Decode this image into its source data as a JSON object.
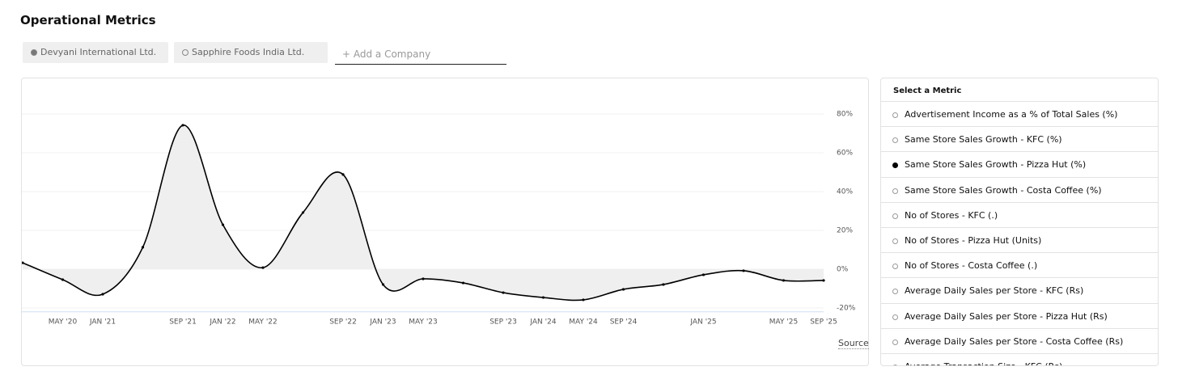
{
  "header": {
    "title": "Operational Metrics"
  },
  "companies": [
    {
      "name": "Devyani International Ltd.",
      "active": true
    },
    {
      "name": "Sapphire Foods India Ltd.",
      "active": false
    }
  ],
  "add_company": "+ Add a Company",
  "source": "Source",
  "chart_data": {
    "type": "line",
    "categories": [
      null,
      "MAY '20",
      "JAN '21",
      null,
      "SEP '21",
      "JAN '22",
      "MAY '22",
      null,
      "SEP '22",
      "JAN '23",
      "MAY '23",
      null,
      "SEP '23",
      "JAN '24",
      "MAY '24",
      "SEP '24",
      null,
      "JAN '25",
      null,
      "MAY '25",
      "SEP '25"
    ],
    "series": [
      {
        "color": "#000000",
        "values": [
          3.3,
          -5.4,
          -12.9,
          11.3,
          74.2,
          22.9,
          0.8,
          29.2,
          48.8,
          -7.9,
          -5,
          -7.1,
          -12.1,
          -14.6,
          -15.8,
          -10.4,
          -7.9,
          -2.9,
          -0.8,
          -5.8,
          -5.8
        ]
      }
    ],
    "ylim": [
      -22,
      96
    ],
    "yticks": [
      {
        "value": -20,
        "label": "-20%"
      },
      {
        "value": 0,
        "label": "0%"
      },
      {
        "value": 20,
        "label": "20%"
      },
      {
        "value": 40,
        "label": "40%"
      },
      {
        "value": 60,
        "label": "60%"
      },
      {
        "value": 80,
        "label": "80%"
      }
    ],
    "grid": true,
    "fill": "#efefef"
  },
  "metrics": {
    "title": "Select a Metric",
    "selected": 2,
    "items": [
      "Advertisement Income as a % of Total Sales (%)",
      "Same Store Sales Growth - KFC (%)",
      "Same Store Sales Growth - Pizza Hut (%)",
      "Same Store Sales Growth - Costa Coffee (%)",
      "No of Stores - KFC (.)",
      "No of Stores - Pizza Hut (Units)",
      "No of Stores - Costa Coffee (.)",
      "Average Daily Sales per Store - KFC (Rs)",
      "Average Daily Sales per Store - Pizza Hut (Rs)",
      "Average Daily Sales per Store - Costa Coffee (Rs)",
      "Average Transaction Size - KFC (Rs)"
    ]
  }
}
